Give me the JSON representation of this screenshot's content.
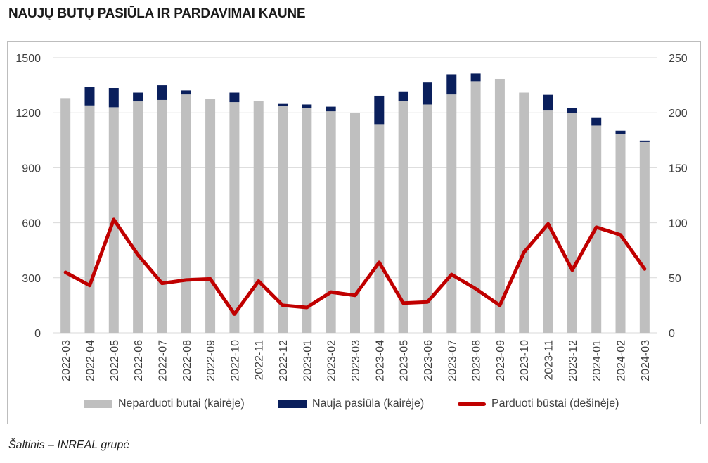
{
  "title": "NAUJŲ BUTŲ PASIŪLA IR PARDAVIMAI KAUNE",
  "source": "Šaltinis – INREAL grupė",
  "colors": {
    "unsold": "#bfbfbf",
    "new_supply": "#0a1f5c",
    "sold": "#c00000",
    "frame": "#bdbdbd",
    "text": "#404040"
  },
  "chart_data": {
    "type": "bar",
    "stacked": true,
    "categories": [
      "2022-03",
      "2022-04",
      "2022-05",
      "2022-06",
      "2022-07",
      "2022-08",
      "2022-09",
      "2022-10",
      "2022-11",
      "2022-12",
      "2023-01",
      "2023-02",
      "2023-03",
      "2023-04",
      "2023-05",
      "2023-06",
      "2023-07",
      "2023-08",
      "2023-09",
      "2023-10",
      "2023-11",
      "2023-12",
      "2024-01",
      "2024-02",
      "2024-03"
    ],
    "series": [
      {
        "name": "Neparduoti butai (kairėje)",
        "type": "bar",
        "axis": "left",
        "values": [
          1280,
          1240,
          1230,
          1262,
          1270,
          1300,
          1275,
          1258,
          1265,
          1238,
          1225,
          1208,
          1200,
          1138,
          1265,
          1245,
          1300,
          1372,
          1385,
          1310,
          1212,
          1200,
          1130,
          1082,
          1040
        ]
      },
      {
        "name": "Nauja pasiūla (kairėje)",
        "type": "bar",
        "axis": "left",
        "values": [
          0,
          102,
          105,
          48,
          80,
          22,
          0,
          52,
          0,
          10,
          20,
          25,
          0,
          155,
          48,
          120,
          110,
          42,
          0,
          0,
          86,
          25,
          45,
          20,
          8
        ]
      },
      {
        "name": "Parduoti būstai (dešinėje)",
        "type": "line",
        "axis": "right",
        "values": [
          55,
          43,
          103,
          71,
          45,
          48,
          49,
          17,
          47,
          25,
          23,
          37,
          34,
          64,
          27,
          28,
          53,
          40,
          25,
          73,
          99,
          57,
          96,
          89,
          58
        ]
      }
    ],
    "y_left": {
      "lim": [
        0,
        1500
      ],
      "ticks": [
        "0",
        "300",
        "600",
        "900",
        "1200",
        "1500"
      ]
    },
    "y_right": {
      "lim": [
        0,
        250
      ],
      "ticks": [
        "0",
        "50",
        "100",
        "150",
        "200",
        "250"
      ]
    },
    "grid": true,
    "legend_position": "bottom"
  }
}
